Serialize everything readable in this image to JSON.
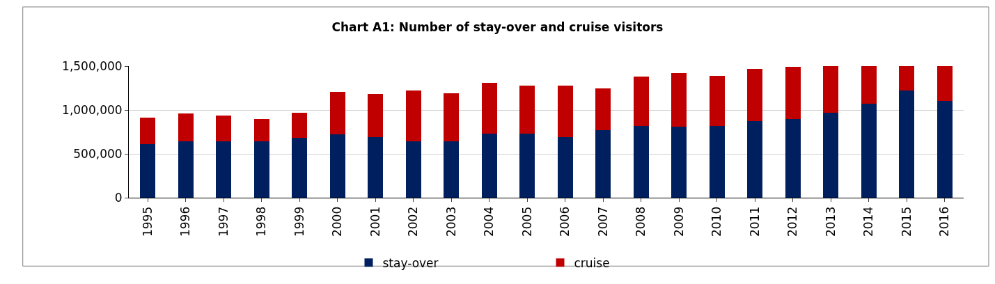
{
  "chart_data": {
    "type": "bar",
    "title": "Chart A1: Number of stay-over and cruise visitors",
    "categories": [
      "1995",
      "1996",
      "1997",
      "1998",
      "1999",
      "2000",
      "2001",
      "2002",
      "2003",
      "2004",
      "2005",
      "2006",
      "2007",
      "2008",
      "2009",
      "2010",
      "2011",
      "2012",
      "2013",
      "2014",
      "2015",
      "2016"
    ],
    "series": [
      {
        "name": "stay-over",
        "color": "#001f5f",
        "values": [
          610000,
          640000,
          640000,
          640000,
          680000,
          720000,
          690000,
          640000,
          640000,
          730000,
          730000,
          690000,
          770000,
          820000,
          810000,
          820000,
          870000,
          900000,
          970000,
          1070000,
          1220000,
          1100000
        ]
      },
      {
        "name": "cruise",
        "color": "#c00000",
        "values": [
          300000,
          320000,
          300000,
          260000,
          290000,
          490000,
          490000,
          580000,
          550000,
          580000,
          550000,
          590000,
          480000,
          560000,
          610000,
          570000,
          600000,
          590000,
          530000,
          430000,
          280000,
          400000
        ]
      }
    ],
    "stacked": true,
    "ylim": [
      0,
      1500000
    ],
    "yticks": [
      {
        "value": 0,
        "label": "0"
      },
      {
        "value": 500000,
        "label": "500,000"
      },
      {
        "value": 1000000,
        "label": "1,000,000"
      },
      {
        "value": 1500000,
        "label": "1,500,000"
      }
    ],
    "grid": "y",
    "legend": "bottom"
  }
}
